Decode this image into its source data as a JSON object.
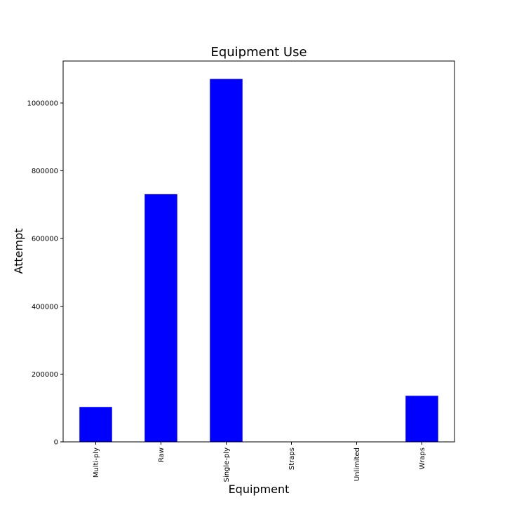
{
  "chart_data": {
    "type": "bar",
    "title": "Equipment Use",
    "xlabel": "Equipment",
    "ylabel": "Attempt",
    "categories": [
      "Multi-ply",
      "Raw",
      "Single-ply",
      "Straps",
      "Unlimited",
      "Wraps"
    ],
    "values": [
      103000,
      731000,
      1071000,
      900,
      600,
      136000
    ],
    "ylim": [
      0,
      1124000
    ],
    "yticks": [
      0,
      200000,
      400000,
      600000,
      800000,
      1000000
    ],
    "ytick_labels": [
      "0",
      "200000",
      "400000",
      "600000",
      "800000",
      "1000000"
    ],
    "bar_color": "#0000ff",
    "grid": false,
    "legend": "none"
  }
}
